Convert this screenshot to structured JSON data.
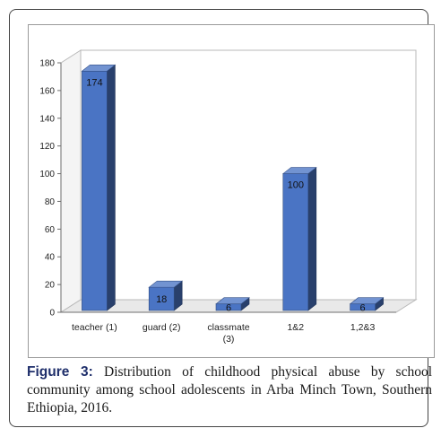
{
  "chart_data": {
    "type": "bar",
    "categories": [
      "teacher (1)",
      "guard (2)",
      "classmate (3)",
      "1&2",
      "1,2&3"
    ],
    "values": [
      174,
      18,
      6,
      100,
      6
    ],
    "data_labels": [
      "174",
      "18",
      "6",
      "100",
      "6"
    ],
    "title": "",
    "xlabel": "",
    "ylabel": "",
    "ylim": [
      0,
      180
    ],
    "yticks": [
      0,
      20,
      40,
      60,
      80,
      100,
      120,
      140,
      160,
      180
    ],
    "grid": false,
    "style": "3d-column",
    "bar_color": "#4a74c4"
  },
  "caption": {
    "label": "Figure 3:",
    "text": "Distribution of childhood physical abuse by school community among school adolescents in Arba Minch Town, Southern Ethiopia, 2016."
  }
}
